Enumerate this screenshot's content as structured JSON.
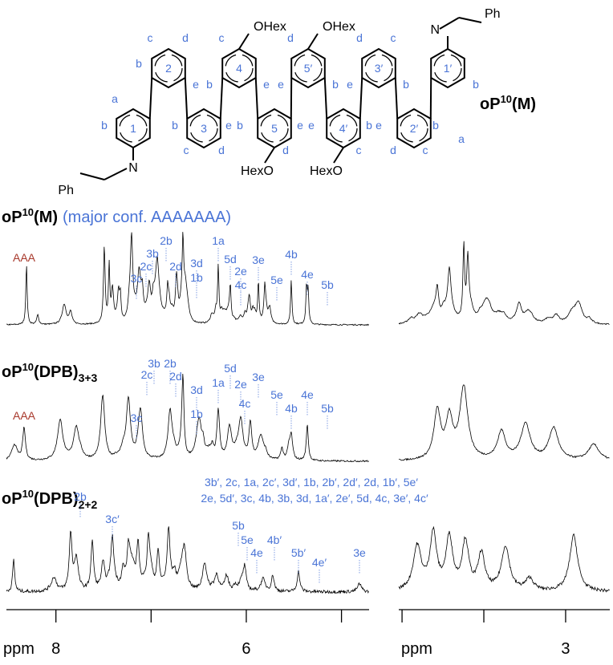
{
  "structure": {
    "name": {
      "base": "oP",
      "sup": "10",
      "suffix": "(M)"
    },
    "rings": [
      "1",
      "2",
      "3",
      "4",
      "5",
      "5′",
      "4′",
      "3′",
      "2′",
      "1′"
    ],
    "substituents": [
      "OHex",
      "OHex",
      "HexO",
      "HexO",
      "Ph",
      "Ph",
      "N",
      "N"
    ],
    "atom_labels": [
      "c",
      "d",
      "b",
      "e",
      "c",
      "b",
      "e",
      "d",
      "e",
      "b",
      "d",
      "c",
      "e",
      "b",
      "b",
      "a",
      "a",
      "b",
      "b",
      "e",
      "b",
      "c",
      "d",
      "e",
      "e",
      "d",
      "c",
      "b",
      "e",
      "b",
      "d",
      "c"
    ]
  },
  "spectra": [
    {
      "name": {
        "base": "oP",
        "sup": "10",
        "suffix": "(M)"
      },
      "note": "(major conf. AAAAAAA)",
      "conformer": "AAA",
      "peaks": [
        "3c",
        "2c",
        "3b",
        "2b",
        "2d",
        "3d",
        "1b",
        "1a",
        "5d",
        "2e",
        "4c",
        "3e",
        "5e",
        "4b",
        "4e",
        "5b"
      ]
    },
    {
      "name": {
        "base": "oP",
        "sup": "10",
        "suffix": "(DPB)",
        "sub": "3+3"
      },
      "conformer": "AAA",
      "peaks": [
        "3b",
        "2b",
        "2c",
        "2d",
        "3d",
        "3c",
        "1b",
        "1a",
        "5d",
        "2e",
        "4c",
        "3e",
        "5e",
        "4b",
        "4e",
        "5b"
      ]
    },
    {
      "name": {
        "base": "oP",
        "sup": "10",
        "suffix": "(DPB)",
        "sub": "2+2"
      },
      "groups": [
        "3b′, 2c, 1a, 2c′, 3d′, 1b, 2b′, 2d′, 2d, 1b′, 5e′",
        "2e, 5d′, 3c, 4b, 3b, 3d, 1a′, 2e′, 5d, 4c, 3e′, 4c′"
      ],
      "peaks": [
        "2b",
        "3c′",
        "5b",
        "5e",
        "4e",
        "4b′",
        "5b′",
        "4e′",
        "3e"
      ]
    }
  ],
  "axes": {
    "unit": "ppm",
    "left": {
      "xlim": [
        8.52,
        4.71
      ],
      "xticks": [
        8,
        6
      ],
      "minor_xticks": [
        7,
        5
      ]
    },
    "right": {
      "xlim": [
        4.02,
        2.73
      ],
      "xticks": [
        3
      ],
      "minor_xticks": [
        4,
        3.5
      ]
    }
  }
}
